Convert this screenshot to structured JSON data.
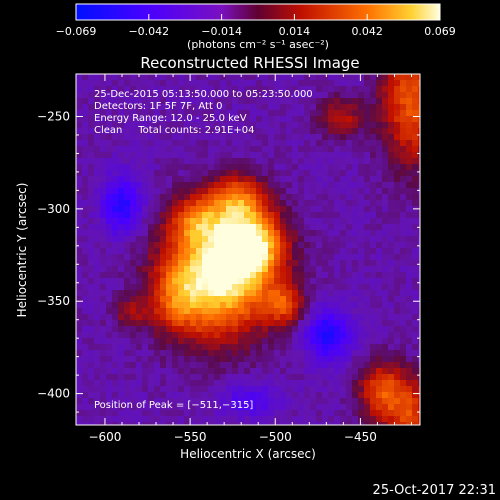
{
  "chart_data": {
    "type": "heatmap",
    "title": "Reconstructed RHESSI Image",
    "xlabel": "Heliocentric X (arcsec)",
    "ylabel": "Heliocentric Y (arcsec)",
    "xlim": [
      -617,
      -415
    ],
    "ylim": [
      -417,
      -227
    ],
    "x_ticks": [
      -600,
      -550,
      -500,
      -450
    ],
    "x_tick_labels": [
      "−600",
      "−550",
      "−500",
      "−450"
    ],
    "y_ticks": [
      -250,
      -300,
      -350,
      -400
    ],
    "y_tick_labels": [
      "−250",
      "−300",
      "−350",
      "−400"
    ],
    "colorbar": {
      "range": [
        -0.069,
        0.069
      ],
      "tick_labels": [
        "−0.069",
        "−0.042",
        "−0.014",
        "0.014",
        "0.042",
        "0.069"
      ],
      "units_line": "(photons cm⁻² s⁻¹ asec⁻²)"
    },
    "peak_position": [
      -511,
      -315
    ],
    "annotations": [
      "25-Dec-2015 05:13:50.000 to 05:23:50.000",
      "Detectors: 1F 5F 7F, Att 0",
      "Energy Range: 12.0 - 25.0 keV",
      "Clean     Total counts: 2.91E+04"
    ],
    "peak_label": "Position of Peak = [−511,−315]",
    "footer_date": "25-Oct-2017 22:31"
  }
}
